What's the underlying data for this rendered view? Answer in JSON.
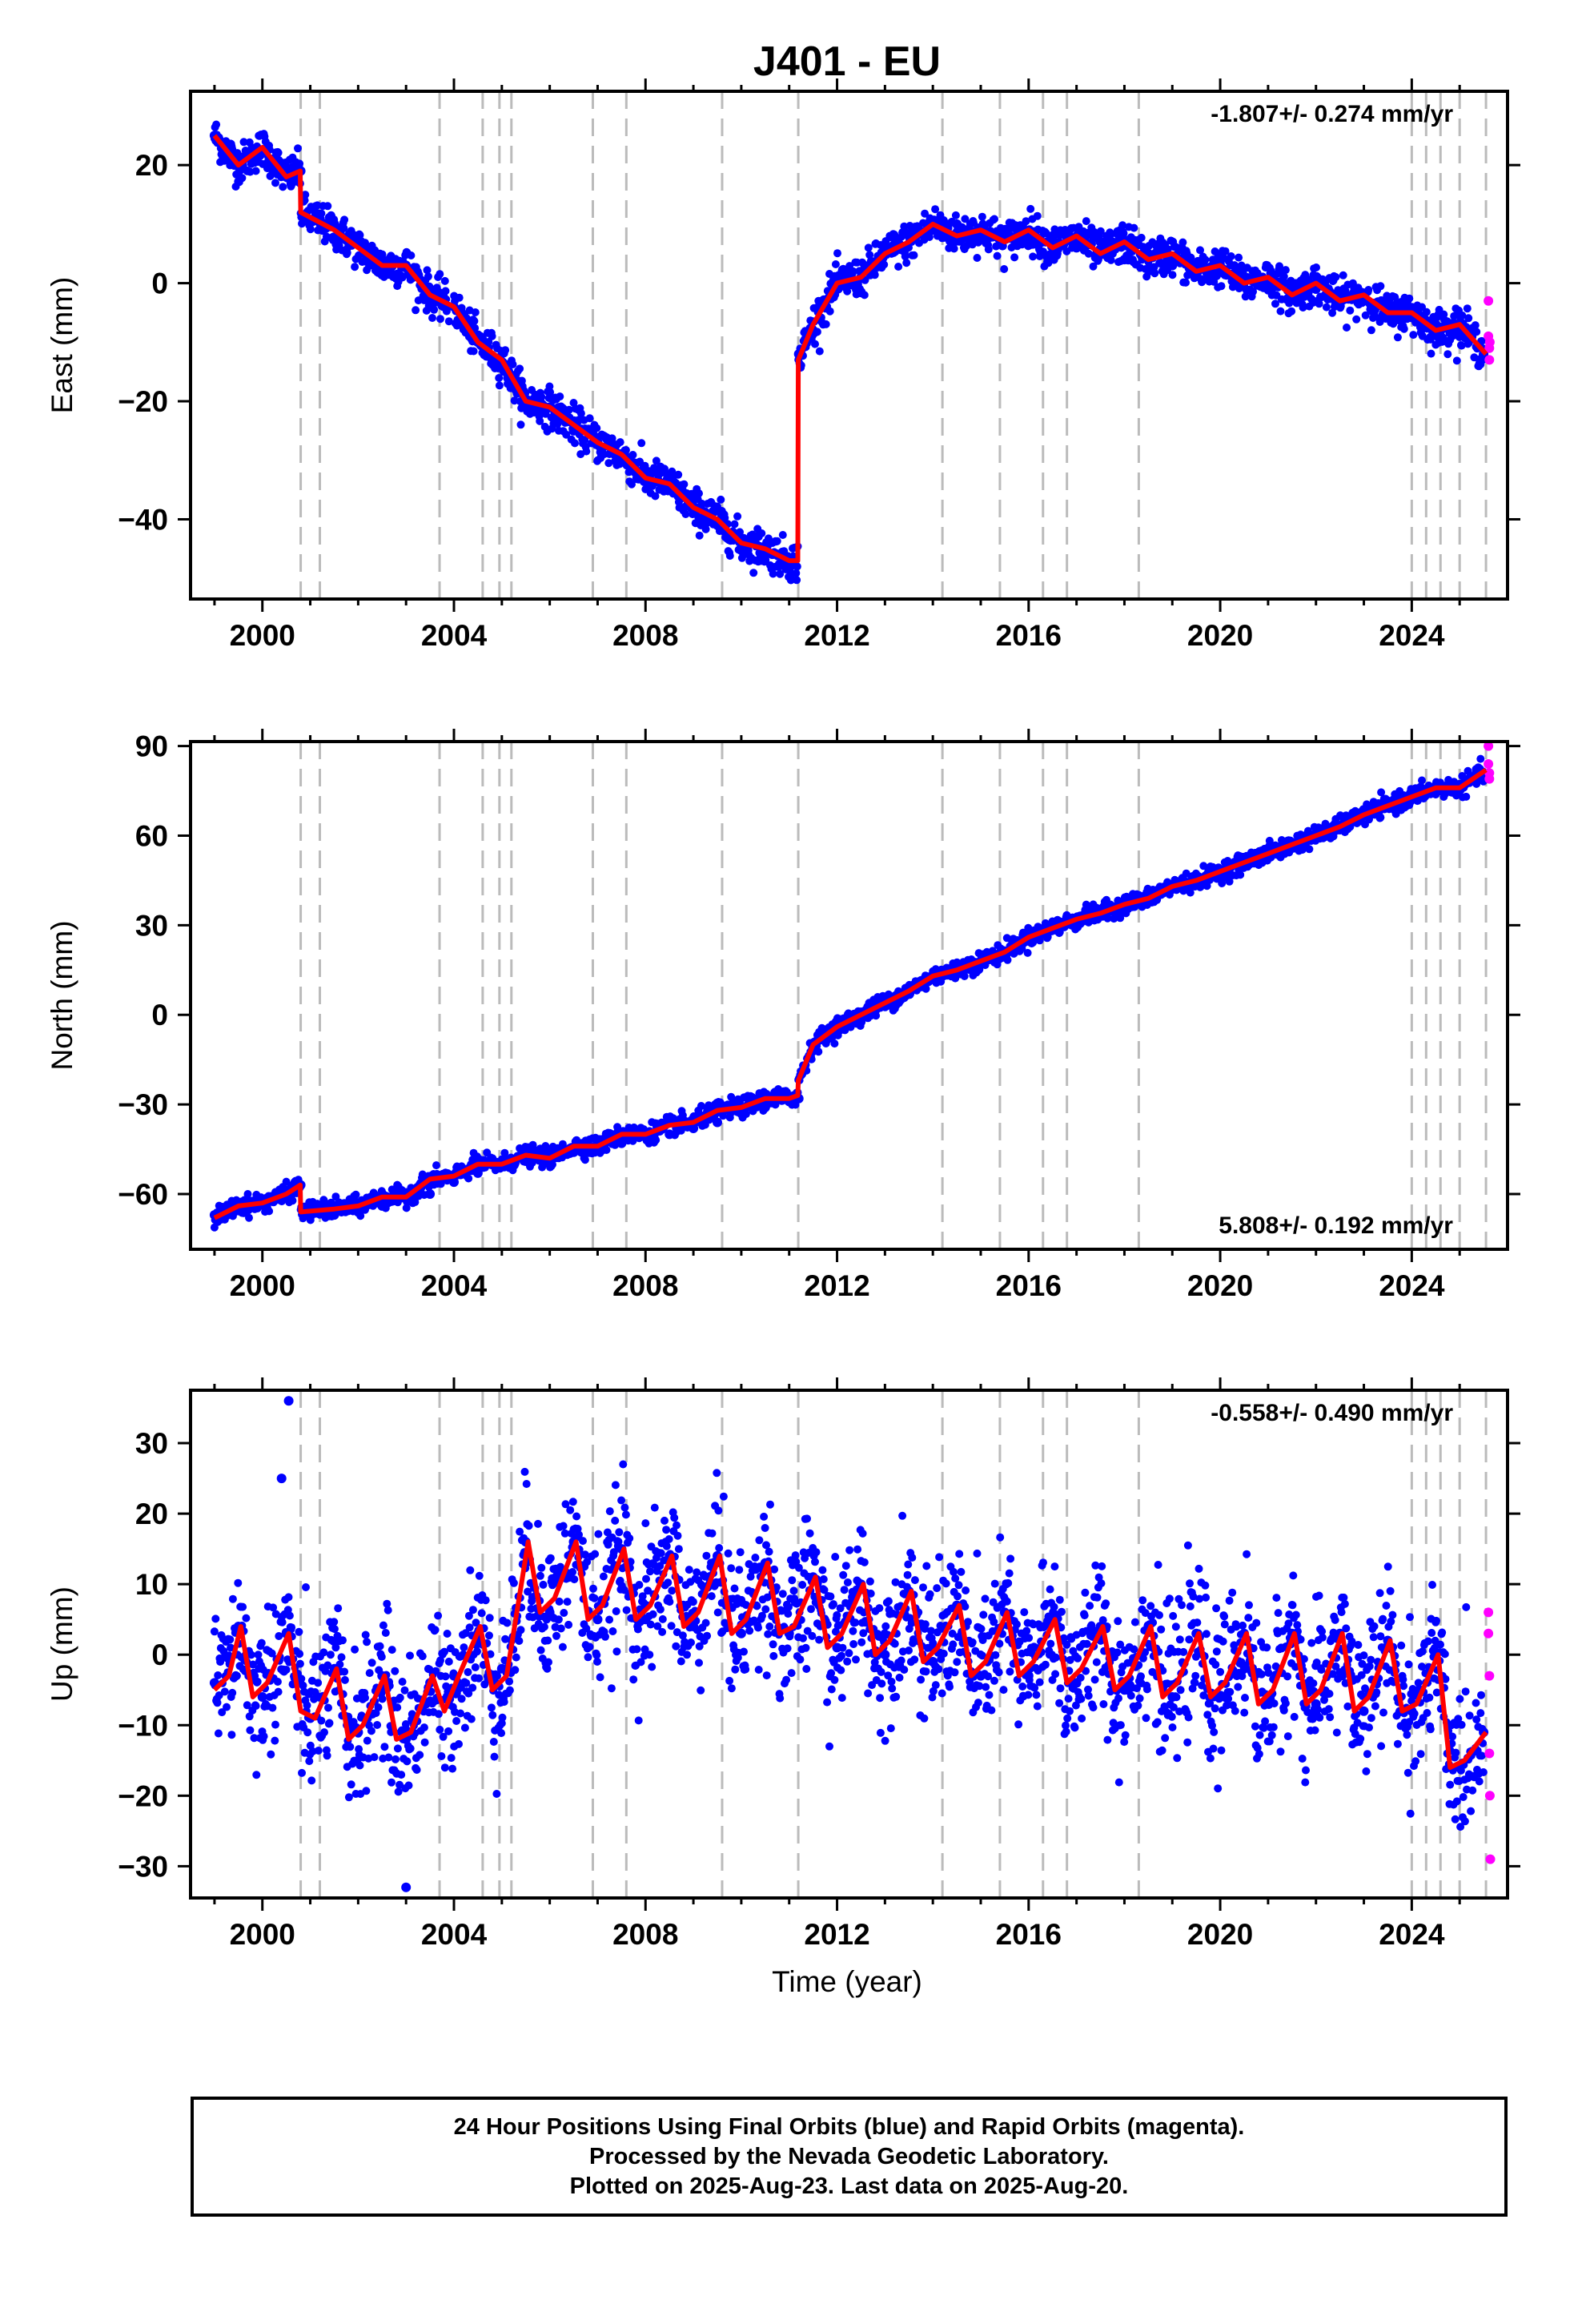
{
  "title": "J401 - EU",
  "colors": {
    "final_orbits": "#0000ff",
    "rapid_orbits": "#ff00ff",
    "model_fit": "#ff0000",
    "equipment_change_lines": "#bbbbbb"
  },
  "xlabel": "Time (year)",
  "footer": {
    "line1": "24 Hour Positions Using Final Orbits (blue) and Rapid Orbits (magenta).",
    "line2": "Processed by the Nevada Geodetic Laboratory.",
    "line3": "Plotted on 2025-Aug-23. Last data on 2025-Aug-20."
  },
  "chart_data": [
    {
      "type": "scatter",
      "component": "east",
      "ylabel": "East (mm)",
      "rate_label": "-1.807+/- 0.274 mm/yr",
      "rate_position": "top-right",
      "xlim": [
        1998.5,
        2026.0
      ],
      "ylim": [
        -53.5,
        32.5
      ],
      "xticks": [
        2000,
        2004,
        2008,
        2012,
        2016,
        2020,
        2024
      ],
      "xtick_labels": [
        "2000",
        "2004",
        "2008",
        "2012",
        "2016",
        "2020",
        "2024"
      ],
      "yticks": [
        -40,
        -20,
        0,
        20
      ],
      "ytick_labels": [
        "−40",
        "−20",
        "0",
        "20"
      ],
      "grid": false,
      "legend": "none",
      "step_epochs": [
        2000.8,
        2001.2,
        2003.7,
        2004.6,
        2004.95,
        2005.2,
        2006.9,
        2007.6,
        2009.6,
        2011.19,
        2014.2,
        2015.4,
        2016.3,
        2016.8,
        2018.3,
        2024.0,
        2024.3,
        2024.6,
        2025.0,
        2025.55
      ],
      "series": [
        {
          "kind": "final_orbits",
          "x": [
            1999.0,
            1999.5,
            2000.0,
            2000.5,
            2000.8,
            2001.5,
            2002.0,
            2002.5,
            2003.0,
            2003.5,
            2004.0,
            2004.5,
            2005.0,
            2005.5,
            2006.0,
            2006.5,
            2007.0,
            2007.5,
            2008.0,
            2008.5,
            2009.0,
            2009.5,
            2010.0,
            2010.5,
            2011.0,
            2011.2,
            2011.5,
            2012.0,
            2012.5,
            2013.0,
            2013.5,
            2014.0,
            2014.5,
            2015.0,
            2015.5,
            2016.0,
            2016.5,
            2017.0,
            2017.5,
            2018.0,
            2018.5,
            2019.0,
            2019.5,
            2020.0,
            2020.5,
            2021.0,
            2021.5,
            2022.0,
            2022.5,
            2023.0,
            2023.5,
            2024.0,
            2024.5,
            2025.0,
            2025.5
          ],
          "y": [
            25,
            21,
            22,
            18,
            19,
            10,
            8,
            4,
            3,
            -1,
            -4,
            -10,
            -14,
            -21,
            -21,
            -25,
            -27,
            -30,
            -32,
            -35,
            -38,
            -41,
            -44,
            -46,
            -48,
            -12,
            -8,
            -1,
            1,
            5,
            8,
            9,
            10,
            8,
            9,
            7,
            8,
            6,
            7,
            4,
            5,
            3,
            3,
            2,
            1,
            0,
            0,
            -1,
            -2,
            -3,
            -4,
            -5,
            -7,
            -9,
            -12
          ]
        },
        {
          "kind": "rapid_orbits",
          "x": [
            2025.6,
            2025.6,
            2025.62,
            2025.62,
            2025.63
          ],
          "y": [
            -3,
            -9,
            -11,
            -13,
            -10
          ]
        },
        {
          "kind": "model_fit",
          "x": [
            1999.0,
            1999.5,
            2000.0,
            2000.5,
            2000.79,
            2000.8,
            2001.5,
            2002.0,
            2002.5,
            2003.0,
            2003.5,
            2004.0,
            2004.5,
            2005.0,
            2005.5,
            2006.0,
            2006.5,
            2007.0,
            2007.5,
            2008.0,
            2008.5,
            2009.0,
            2009.5,
            2010.0,
            2010.5,
            2011.0,
            2011.18,
            2011.19,
            2011.5,
            2012.0,
            2012.5,
            2013.0,
            2013.5,
            2014.0,
            2014.5,
            2015.0,
            2015.5,
            2016.0,
            2016.5,
            2017.0,
            2017.5,
            2018.0,
            2018.5,
            2019.0,
            2019.5,
            2020.0,
            2020.5,
            2021.0,
            2021.5,
            2022.0,
            2022.5,
            2023.0,
            2023.5,
            2024.0,
            2024.5,
            2025.0,
            2025.55
          ],
          "y": [
            25,
            20,
            23,
            18,
            19,
            12,
            9,
            6,
            3,
            3,
            -2,
            -4,
            -10,
            -13,
            -20,
            -21,
            -24,
            -27,
            -29,
            -33,
            -34,
            -38,
            -40,
            -44,
            -45,
            -47,
            -47,
            -13,
            -7,
            0,
            1,
            5,
            7,
            10,
            8,
            9,
            7,
            9,
            6,
            8,
            5,
            7,
            4,
            5,
            2,
            3,
            0,
            1,
            -2,
            0,
            -3,
            -2,
            -5,
            -5,
            -8,
            -7,
            -12
          ]
        }
      ]
    },
    {
      "type": "scatter",
      "component": "north",
      "ylabel": "North (mm)",
      "rate_label": "5.808+/- 0.192 mm/yr",
      "rate_position": "bottom-right",
      "xlim": [
        1998.5,
        2026.0
      ],
      "ylim": [
        -78.5,
        91.5
      ],
      "xticks": [
        2000,
        2004,
        2008,
        2012,
        2016,
        2020,
        2024
      ],
      "xtick_labels": [
        "2000",
        "2004",
        "2008",
        "2012",
        "2016",
        "2020",
        "2024"
      ],
      "yticks": [
        -60,
        -30,
        0,
        30,
        60,
        90
      ],
      "ytick_labels": [
        "−60",
        "−30",
        "0",
        "30",
        "60",
        "90"
      ],
      "grid": false,
      "legend": "none",
      "step_epochs": [
        2000.8,
        2001.2,
        2003.7,
        2004.6,
        2004.95,
        2005.2,
        2006.9,
        2007.6,
        2009.6,
        2011.19,
        2014.2,
        2015.4,
        2016.3,
        2016.8,
        2018.3,
        2024.0,
        2024.3,
        2024.6,
        2025.0,
        2025.55
      ],
      "series": [
        {
          "kind": "final_orbits",
          "x": [
            1999.0,
            1999.5,
            2000.0,
            2000.5,
            2000.8,
            2001.5,
            2002.0,
            2002.5,
            2003.0,
            2003.5,
            2004.0,
            2004.5,
            2005.0,
            2005.5,
            2006.0,
            2006.5,
            2007.0,
            2007.5,
            2008.0,
            2008.5,
            2009.0,
            2009.5,
            2010.0,
            2010.5,
            2011.0,
            2011.2,
            2011.5,
            2012.0,
            2012.5,
            2013.0,
            2013.5,
            2014.0,
            2014.5,
            2015.0,
            2015.5,
            2016.0,
            2016.5,
            2017.0,
            2017.5,
            2018.0,
            2018.5,
            2019.0,
            2019.5,
            2020.0,
            2020.5,
            2021.0,
            2021.5,
            2022.0,
            2022.5,
            2023.0,
            2023.5,
            2024.0,
            2024.5,
            2025.0,
            2025.5
          ],
          "y": [
            -67,
            -65,
            -63,
            -61,
            -57,
            -67,
            -66,
            -64,
            -61,
            -60,
            -56,
            -53,
            -50,
            -49,
            -48,
            -46,
            -45,
            -43,
            -41,
            -40,
            -38,
            -36,
            -33,
            -31,
            -29,
            -28,
            -12,
            -3,
            0,
            4,
            8,
            13,
            16,
            18,
            21,
            26,
            29,
            32,
            34,
            37,
            39,
            43,
            45,
            48,
            51,
            54,
            57,
            60,
            62,
            67,
            70,
            73,
            75,
            76,
            79
          ]
        },
        {
          "kind": "rapid_orbits",
          "x": [
            2025.6,
            2025.6,
            2025.62,
            2025.62
          ],
          "y": [
            90,
            84,
            81,
            79
          ]
        },
        {
          "kind": "model_fit",
          "x": [
            1999.0,
            1999.5,
            2000.0,
            2000.5,
            2000.79,
            2000.8,
            2001.5,
            2002.0,
            2002.5,
            2003.0,
            2003.5,
            2004.0,
            2004.5,
            2005.0,
            2005.5,
            2006.0,
            2006.5,
            2007.0,
            2007.5,
            2008.0,
            2008.5,
            2009.0,
            2009.5,
            2010.0,
            2010.5,
            2011.0,
            2011.18,
            2011.19,
            2011.5,
            2012.0,
            2012.5,
            2013.0,
            2013.5,
            2014.0,
            2014.5,
            2015.0,
            2015.5,
            2016.0,
            2016.5,
            2017.0,
            2017.5,
            2018.0,
            2018.5,
            2019.0,
            2019.5,
            2020.0,
            2020.5,
            2021.0,
            2021.5,
            2022.0,
            2022.5,
            2023.0,
            2023.5,
            2024.0,
            2024.5,
            2025.0,
            2025.55
          ],
          "y": [
            -68,
            -64,
            -63,
            -60,
            -57,
            -66,
            -65,
            -64,
            -61,
            -61,
            -55,
            -54,
            -50,
            -50,
            -47,
            -48,
            -44,
            -44,
            -40,
            -40,
            -37,
            -36,
            -32,
            -31,
            -28,
            -28,
            -27,
            -22,
            -10,
            -4,
            0,
            4,
            8,
            13,
            15,
            18,
            21,
            26,
            29,
            32,
            34,
            37,
            39,
            43,
            45,
            48,
            51,
            54,
            57,
            60,
            63,
            67,
            70,
            73,
            76,
            76,
            82
          ]
        }
      ]
    },
    {
      "type": "scatter",
      "component": "up",
      "ylabel": "Up (mm)",
      "rate_label": "-0.558+/- 0.490 mm/yr",
      "rate_position": "top-right",
      "xlim": [
        1998.5,
        2026.0
      ],
      "ylim": [
        -34.5,
        37.5
      ],
      "xticks": [
        2000,
        2004,
        2008,
        2012,
        2016,
        2020,
        2024
      ],
      "xtick_labels": [
        "2000",
        "2004",
        "2008",
        "2012",
        "2016",
        "2020",
        "2024"
      ],
      "yticks": [
        -30,
        -20,
        -10,
        0,
        10,
        20,
        30
      ],
      "ytick_labels": [
        "−30",
        "−20",
        "−10",
        "0",
        "10",
        "20",
        "30"
      ],
      "grid": false,
      "legend": "none",
      "step_epochs": [
        2000.8,
        2001.2,
        2003.7,
        2004.6,
        2004.95,
        2005.2,
        2006.9,
        2007.6,
        2009.6,
        2011.19,
        2014.2,
        2015.4,
        2016.3,
        2016.8,
        2018.3,
        2024.0,
        2024.3,
        2024.6,
        2025.0,
        2025.55
      ],
      "series": [
        {
          "kind": "final_orbits",
          "x": [
            1999.0,
            1999.5,
            2000.0,
            2000.5,
            2001.0,
            2001.5,
            2002.0,
            2002.5,
            2003.0,
            2003.5,
            2004.0,
            2004.5,
            2005.0,
            2005.5,
            2006.0,
            2006.5,
            2007.0,
            2007.5,
            2008.0,
            2008.5,
            2009.0,
            2009.5,
            2010.0,
            2010.5,
            2011.0,
            2011.5,
            2012.0,
            2012.5,
            2013.0,
            2013.5,
            2014.0,
            2014.5,
            2015.0,
            2015.5,
            2016.0,
            2016.5,
            2017.0,
            2017.5,
            2018.0,
            2018.5,
            2019.0,
            2019.5,
            2020.0,
            2020.5,
            2021.0,
            2021.5,
            2022.0,
            2022.5,
            2023.0,
            2023.5,
            2024.0,
            2024.5,
            2025.0,
            2025.5,
            2000.4,
            2000.55,
            2003.0
          ],
          "y": [
            -4,
            4,
            -6,
            3,
            -9,
            -2,
            -11,
            -3,
            -12,
            -4,
            -3,
            3,
            -2,
            16,
            6,
            16,
            5,
            15,
            5,
            14,
            4,
            14,
            3,
            13,
            3,
            11,
            1,
            10,
            0,
            9,
            -1,
            7,
            -3,
            6,
            -3,
            5,
            -4,
            4,
            -5,
            4,
            -6,
            3,
            -6,
            3,
            -7,
            3,
            -7,
            3,
            -8,
            2,
            -8,
            0,
            -16,
            -11,
            25,
            36,
            -33
          ]
        },
        {
          "kind": "rapid_orbits",
          "x": [
            2025.6,
            2025.6,
            2025.62,
            2025.62,
            2025.63,
            2025.64
          ],
          "y": [
            6,
            3,
            -3,
            -14,
            -20,
            -29
          ]
        },
        {
          "kind": "model_fit",
          "x": [
            1999.0,
            1999.3,
            1999.55,
            1999.8,
            2000.1,
            2000.55,
            2000.8,
            2001.1,
            2001.55,
            2001.8,
            2002.1,
            2002.55,
            2002.8,
            2003.1,
            2003.55,
            2003.8,
            2004.1,
            2004.55,
            2004.8,
            2005.1,
            2005.55,
            2005.8,
            2006.1,
            2006.55,
            2006.8,
            2007.1,
            2007.55,
            2007.8,
            2008.1,
            2008.55,
            2008.8,
            2009.1,
            2009.55,
            2009.8,
            2010.1,
            2010.55,
            2010.8,
            2011.1,
            2011.55,
            2011.8,
            2012.1,
            2012.55,
            2012.8,
            2013.1,
            2013.55,
            2013.8,
            2014.1,
            2014.55,
            2014.8,
            2015.1,
            2015.55,
            2015.8,
            2016.1,
            2016.55,
            2016.8,
            2017.1,
            2017.55,
            2017.8,
            2018.1,
            2018.55,
            2018.8,
            2019.1,
            2019.55,
            2019.8,
            2020.1,
            2020.55,
            2020.8,
            2021.1,
            2021.55,
            2021.8,
            2022.1,
            2022.55,
            2022.8,
            2023.1,
            2023.55,
            2023.8,
            2024.1,
            2024.55,
            2024.8,
            2025.1,
            2025.55
          ],
          "y": [
            -5,
            -3,
            4,
            -6,
            -4,
            3,
            -8,
            -9,
            -2,
            -12,
            -10,
            -3,
            -12,
            -11,
            -3,
            -8,
            -3,
            4,
            -5,
            -3,
            16,
            6,
            8,
            16,
            5,
            7,
            15,
            5,
            7,
            14,
            4,
            6,
            14,
            3,
            5,
            13,
            3,
            4,
            11,
            1,
            3,
            10,
            0,
            2,
            9,
            -1,
            1,
            7,
            -3,
            -1,
            6,
            -3,
            -1,
            5,
            -4,
            -2,
            4,
            -5,
            -3,
            4,
            -6,
            -4,
            3,
            -6,
            -4,
            3,
            -7,
            -5,
            3,
            -7,
            -5,
            3,
            -8,
            -6,
            2,
            -8,
            -7,
            0,
            -16,
            -15,
            -11
          ]
        }
      ]
    }
  ]
}
